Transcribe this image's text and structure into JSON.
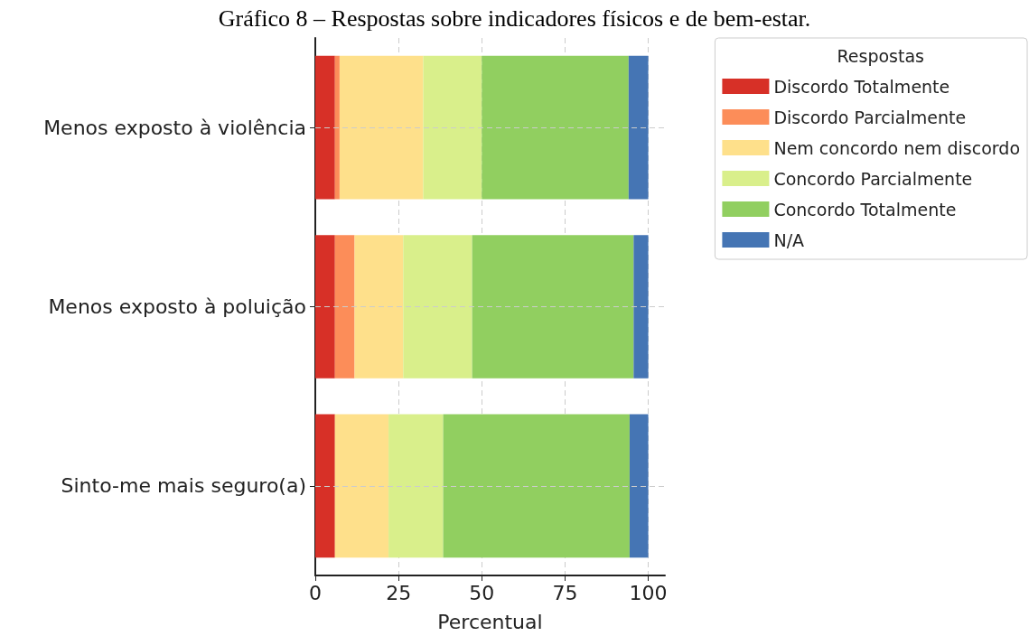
{
  "chart_data": {
    "type": "bar",
    "orientation": "horizontal",
    "stacked": true,
    "title": "Gráfico 8 – Respostas sobre indicadores físicos e de bem-estar.",
    "xlabel": "Percentual",
    "legend_title": "Respostas",
    "categories": [
      "Menos exposto à violência",
      "Menos exposto à poluição",
      "Sinto-me mais seguro(a)"
    ],
    "series": [
      {
        "name": "Discordo Totalmente",
        "color": "#d73027",
        "values": [
          5.9,
          5.9,
          5.9
        ]
      },
      {
        "name": "Discordo Parcialmente",
        "color": "#fc8d59",
        "values": [
          1.4,
          5.9,
          0
        ]
      },
      {
        "name": "Nem concordo nem discordo",
        "color": "#fee08b",
        "values": [
          25.1,
          14.6,
          16.1
        ]
      },
      {
        "name": "Concordo Parcialmente",
        "color": "#d9ef8b",
        "values": [
          17.6,
          20.7,
          16.4
        ]
      },
      {
        "name": "Concordo Totalmente",
        "color": "#91cf60",
        "values": [
          44.1,
          48.5,
          56.0
        ]
      },
      {
        "name": "N/A",
        "color": "#4575b4",
        "values": [
          5.9,
          4.4,
          5.6
        ]
      }
    ],
    "xlim": [
      0,
      105
    ],
    "xticks": [
      0,
      25,
      50,
      75,
      100
    ],
    "grid": true,
    "legend": "top right"
  }
}
